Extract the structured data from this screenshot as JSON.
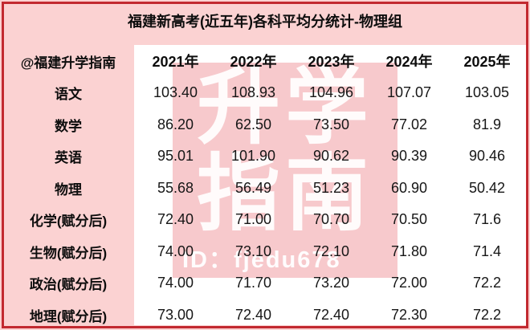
{
  "title": "福建新高考(近五年)各科平均分统计-物理组",
  "watermark": {
    "badge_chars": "升学\n指南",
    "id_text": "ID：fjedu678"
  },
  "table": {
    "corner_label": "@福建升学指南",
    "year_headers": [
      "2021年",
      "2022年",
      "2023年",
      "2024年",
      "2025年"
    ],
    "rows": [
      {
        "label": "语文",
        "values": [
          "103.40",
          "108.93",
          "104.96",
          "107.07",
          "103.05"
        ]
      },
      {
        "label": "数学",
        "values": [
          "86.20",
          "62.50",
          "73.50",
          "77.02",
          "81.9"
        ]
      },
      {
        "label": "英语",
        "values": [
          "95.01",
          "101.90",
          "90.62",
          "90.39",
          "90.46"
        ]
      },
      {
        "label": "物理",
        "values": [
          "55.68",
          "56.49",
          "51.23",
          "60.90",
          "50.42"
        ]
      },
      {
        "label": "化学(赋分后)",
        "values": [
          "72.40",
          "71.00",
          "70.70",
          "70.50",
          "71.6"
        ]
      },
      {
        "label": "生物(赋分后)",
        "values": [
          "74.00",
          "73.10",
          "72.10",
          "71.80",
          "71.4"
        ]
      },
      {
        "label": "政治(赋分后)",
        "values": [
          "74.00",
          "71.70",
          "73.20",
          "72.00",
          "72.2"
        ]
      },
      {
        "label": "地理(赋分后)",
        "values": [
          "73.00",
          "72.40",
          "72.40",
          "72.30",
          "72.2"
        ]
      }
    ]
  },
  "chart_data": {
    "type": "table",
    "title": "福建新高考(近五年)各科平均分统计-物理组",
    "columns": [
      "@福建升学指南",
      "2021年",
      "2022年",
      "2023年",
      "2024年",
      "2025年"
    ],
    "rows": [
      [
        "语文",
        103.4,
        108.93,
        104.96,
        107.07,
        103.05
      ],
      [
        "数学",
        86.2,
        62.5,
        73.5,
        77.02,
        81.9
      ],
      [
        "英语",
        95.01,
        101.9,
        90.62,
        90.39,
        90.46
      ],
      [
        "物理",
        55.68,
        56.49,
        51.23,
        60.9,
        50.42
      ],
      [
        "化学(赋分后)",
        72.4,
        71.0,
        70.7,
        70.5,
        71.6
      ],
      [
        "生物(赋分后)",
        74.0,
        73.1,
        72.1,
        71.8,
        71.4
      ],
      [
        "政治(赋分后)",
        74.0,
        71.7,
        73.2,
        72.0,
        72.2
      ],
      [
        "地理(赋分后)",
        73.0,
        72.4,
        72.4,
        72.3,
        72.2
      ]
    ],
    "layout": "header row of years across top, subject names down left column, no gridlines, watermark badge overlay in center"
  },
  "colors": {
    "card_bg": "#fbd2d2",
    "border_red": "#c22930",
    "panel_bg": "#ffffff",
    "watermark_pink": "#f5babe",
    "watermark_text": "#ffffff",
    "text": "#111111"
  }
}
